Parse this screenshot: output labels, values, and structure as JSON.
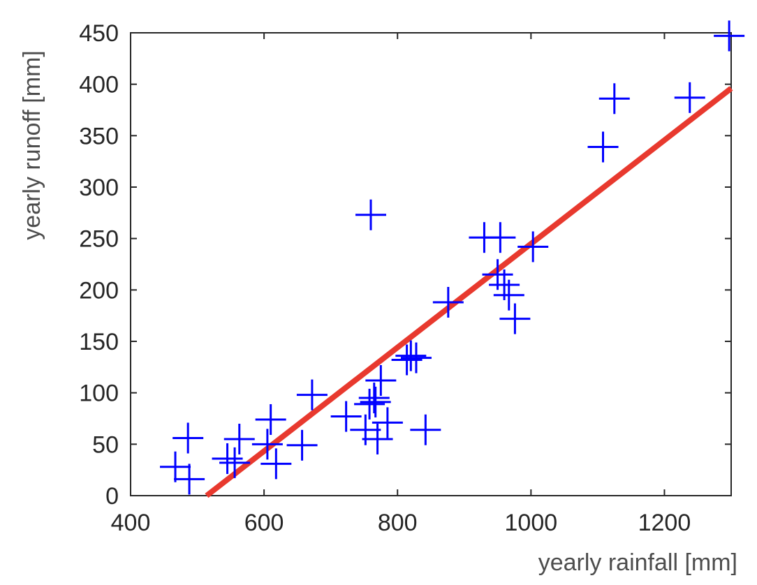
{
  "chart_data": {
    "type": "scatter",
    "title": "",
    "xlabel": "yearly rainfall [mm]",
    "ylabel": "yearly runoff [mm]",
    "xlim": [
      400,
      1300
    ],
    "ylim": [
      0,
      450
    ],
    "xticks": [
      400,
      600,
      800,
      1000,
      1200
    ],
    "yticks": [
      0,
      50,
      100,
      150,
      200,
      250,
      300,
      350,
      400,
      450
    ],
    "grid": false,
    "colors": {
      "points": "#0000ff",
      "fit": "#e8392e",
      "axes": "#262626"
    },
    "series": [
      {
        "type": "scatter",
        "marker": "+",
        "x": [
          467,
          488,
          486,
          545,
          556,
          563,
          605,
          610,
          618,
          657,
          672,
          723,
          752,
          758,
          760,
          765,
          767,
          770,
          775,
          785,
          814,
          820,
          828,
          842,
          876,
          930,
          954,
          950,
          960,
          967,
          976,
          1003,
          1108,
          1125,
          1238,
          1297
        ],
        "y": [
          28,
          16,
          56,
          36,
          32,
          55,
          50,
          74,
          31,
          49,
          98,
          77,
          64,
          89,
          273,
          95,
          91,
          55,
          112,
          71,
          132,
          136,
          134,
          64,
          188,
          251,
          251,
          215,
          205,
          195,
          172,
          242,
          339,
          386,
          387,
          447
        ]
      },
      {
        "type": "line",
        "x": [
          514,
          1300
        ],
        "y": [
          0,
          396
        ]
      }
    ]
  }
}
